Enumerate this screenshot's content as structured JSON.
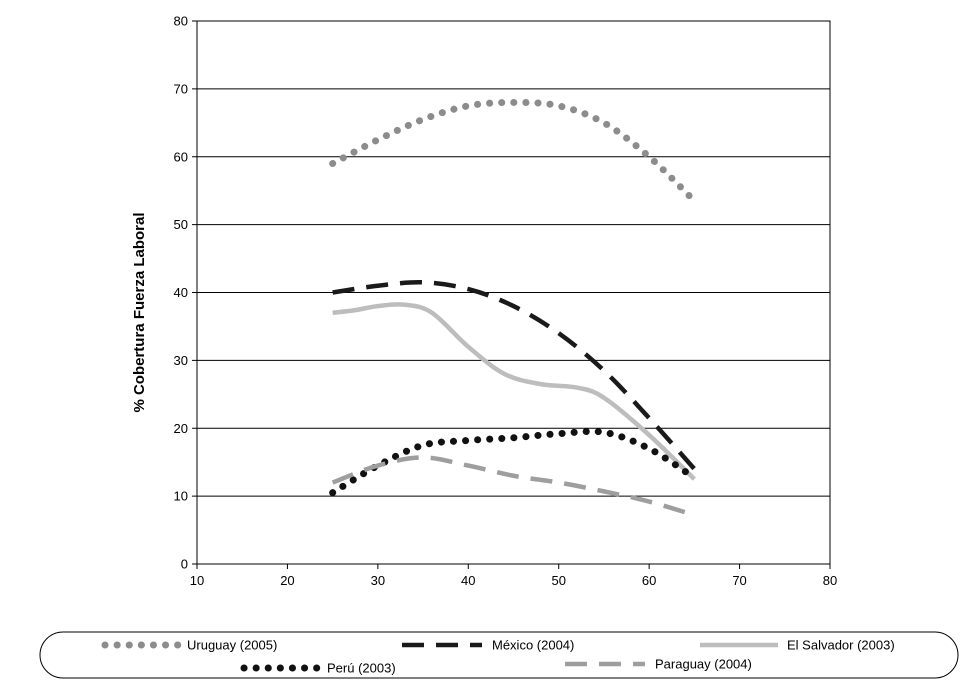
{
  "chart_data": {
    "type": "line",
    "title": "",
    "xlabel": "",
    "ylabel": "% Cobertura Fuerza Laboral",
    "xlim": [
      10,
      80
    ],
    "ylim": [
      0,
      80
    ],
    "x_ticks": [
      10,
      20,
      30,
      40,
      50,
      60,
      70,
      80
    ],
    "y_ticks": [
      0,
      10,
      20,
      30,
      40,
      50,
      60,
      70,
      80
    ],
    "grid": "horizontal",
    "legend_position": "bottom",
    "series": [
      {
        "name": "Uruguay (2005)",
        "style": "dotted",
        "color": "#8c8c8c",
        "x": [
          25,
          30,
          35,
          40,
          45,
          50,
          55,
          60,
          65
        ],
        "y": [
          59,
          62.5,
          65.5,
          67.5,
          68,
          67.5,
          65,
          60,
          53.5
        ]
      },
      {
        "name": "México (2004)",
        "style": "dashed",
        "color": "#1a1a1a",
        "x": [
          25,
          30,
          35,
          40,
          45,
          50,
          55,
          60,
          65
        ],
        "y": [
          40,
          41,
          41.5,
          40.5,
          38,
          34,
          28.5,
          21.5,
          14
        ]
      },
      {
        "name": "El Salvador (2003)",
        "style": "solid",
        "color": "#bdbdbd",
        "x": [
          25,
          27.5,
          30,
          33,
          36,
          40,
          44,
          48,
          52,
          55,
          60,
          65
        ],
        "y": [
          37,
          37.4,
          38,
          38.2,
          37,
          32,
          28,
          26.5,
          26,
          24.5,
          19,
          12.5
        ]
      },
      {
        "name": "Perú (2003)",
        "style": "dotted",
        "color": "#111111",
        "x": [
          25,
          30,
          35,
          40,
          45,
          50,
          55,
          60,
          65
        ],
        "y": [
          10.5,
          14.5,
          17.5,
          18.2,
          18.6,
          19.2,
          19.4,
          17,
          12.7
        ]
      },
      {
        "name": "Paraguay (2004)",
        "style": "dashed",
        "color": "#9e9e9e",
        "x": [
          25,
          30,
          35,
          40,
          45,
          50,
          55,
          60,
          65
        ],
        "y": [
          12,
          14.5,
          15.7,
          14.5,
          13,
          12,
          10.7,
          9.2,
          7.2
        ]
      }
    ]
  }
}
